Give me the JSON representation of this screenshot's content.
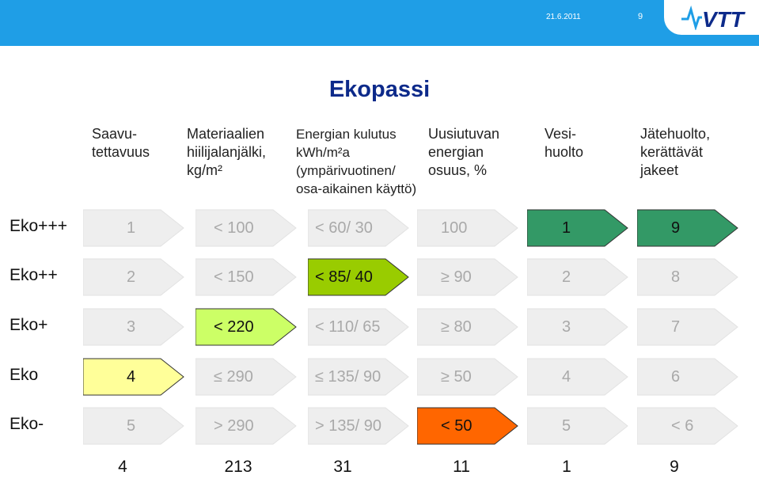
{
  "header": {
    "date": "21.6.2011",
    "page": "9",
    "logo_text": "VTT"
  },
  "title": "Ekopassi",
  "columns": [
    {
      "header": "Saavu-\ntettavuus"
    },
    {
      "header": "Materiaalien\nhiilijalanjälki,\nkg/m²"
    },
    {
      "header": "Energian kulutus\nkWh/m²a\n(ympärivuotinen/\nosa-aikainen käyttö)"
    },
    {
      "header": "Uusiutuvan\nenergian\nosuus, %"
    },
    {
      "header": "Vesi-\nhuolto"
    },
    {
      "header": "Jätehuolto,\nkerättävät\njakeet"
    }
  ],
  "rows": [
    {
      "label": "Eko+++",
      "cells": [
        "1",
        "< 100",
        "< 60/ 30",
        "100",
        "1",
        "9"
      ]
    },
    {
      "label": "Eko++",
      "cells": [
        "2",
        "< 150",
        "< 85/ 40",
        "≥ 90",
        "2",
        "8"
      ]
    },
    {
      "label": "Eko+",
      "cells": [
        "3",
        "< 220",
        "< 110/ 65",
        "≥ 80",
        "3",
        "7"
      ]
    },
    {
      "label": "Eko",
      "cells": [
        "4",
        "≤ 290",
        "≤ 135/ 90",
        "≥ 50",
        "4",
        "6"
      ]
    },
    {
      "label": "Eko-",
      "cells": [
        "5",
        "> 290",
        "> 135/ 90",
        "< 50",
        "5",
        "< 6"
      ]
    }
  ],
  "highlights": [
    {
      "row": 3,
      "col": 0,
      "color": "#ffff99"
    },
    {
      "row": 2,
      "col": 1,
      "color": "#ccff66"
    },
    {
      "row": 1,
      "col": 2,
      "color": "#99cc00"
    },
    {
      "row": 4,
      "col": 3,
      "color": "#ff6600"
    },
    {
      "row": 0,
      "col": 4,
      "color": "#339966"
    },
    {
      "row": 0,
      "col": 5,
      "color": "#339966"
    }
  ],
  "totals": [
    "4",
    "213",
    "31",
    "11",
    "1",
    "9"
  ],
  "colors": {
    "topbar": "#1f9ee6",
    "title": "#0d2a8a",
    "inactive_fill": "#eeeeee",
    "inactive_text": "#a9a9a9"
  }
}
